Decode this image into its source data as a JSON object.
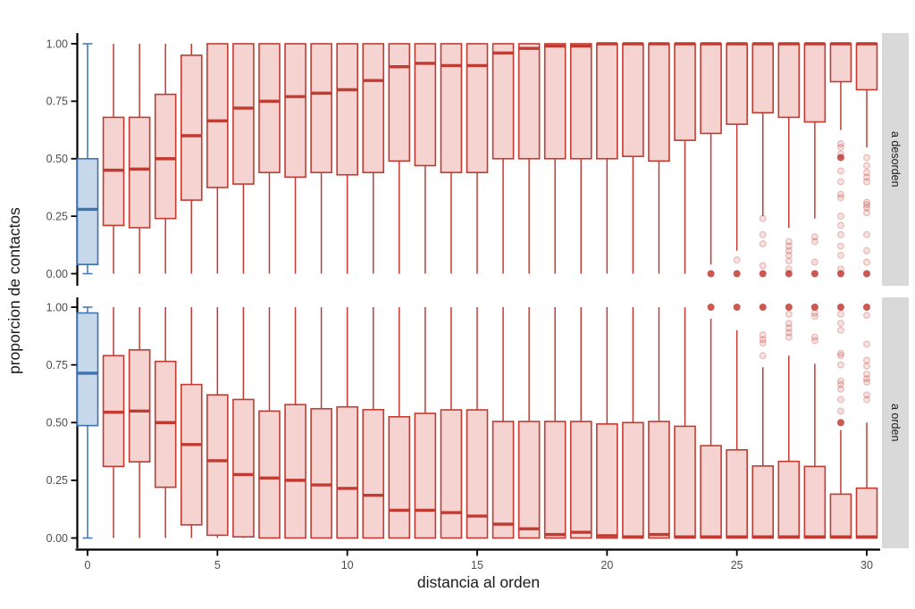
{
  "colors": {
    "red_stroke": "#C23B33",
    "red_fill": "#F4D3D0",
    "blue_stroke": "#3E73B2",
    "blue_fill": "#C6D8EA",
    "axis_line": "#000000",
    "tick_label": "#4D4D4D",
    "title_text": "#1A1A1A",
    "strip_bg": "#D9D9D9",
    "strip_text": "#1A1A1A"
  },
  "chart_data": {
    "type": "boxplot",
    "title": "",
    "xlabel": "distancia al orden",
    "ylabel": "proporcion de contactos",
    "x_ticks": [
      0,
      5,
      10,
      15,
      20,
      25,
      30
    ],
    "x_tick_labels": [
      "0",
      "5",
      "10",
      "15",
      "20",
      "25",
      "30"
    ],
    "y_ticks": [
      0,
      0.25,
      0.5,
      0.75,
      1
    ],
    "y_tick_labels": [
      "0.00",
      "0.25",
      "0.50",
      "0.75",
      "1.00"
    ],
    "xlim": [
      -1,
      31
    ],
    "ylim": [
      0,
      1
    ],
    "grid": false,
    "legend": "none",
    "facet_layout": "rows-right-strips",
    "facets": [
      {
        "label": "a desorden",
        "boxes": [
          {
            "x": 0,
            "group": "blue",
            "lo": 0,
            "q1": 0.04,
            "med": 0.28,
            "q3": 0.5,
            "hi": 1
          },
          {
            "x": 1,
            "group": "red",
            "lo": 0,
            "q1": 0.21,
            "med": 0.45,
            "q3": 0.68,
            "hi": 1
          },
          {
            "x": 2,
            "group": "red",
            "lo": 0,
            "q1": 0.2,
            "med": 0.455,
            "q3": 0.68,
            "hi": 1
          },
          {
            "x": 3,
            "group": "red",
            "lo": 0,
            "q1": 0.24,
            "med": 0.5,
            "q3": 0.78,
            "hi": 1
          },
          {
            "x": 4,
            "group": "red",
            "lo": 0,
            "q1": 0.32,
            "med": 0.6,
            "q3": 0.95,
            "hi": 1
          },
          {
            "x": 5,
            "group": "red",
            "lo": 0,
            "q1": 0.375,
            "med": 0.665,
            "q3": 1,
            "hi": 1
          },
          {
            "x": 6,
            "group": "red",
            "lo": 0,
            "q1": 0.39,
            "med": 0.72,
            "q3": 1,
            "hi": 1
          },
          {
            "x": 7,
            "group": "red",
            "lo": 0,
            "q1": 0.44,
            "med": 0.75,
            "q3": 1,
            "hi": 1
          },
          {
            "x": 8,
            "group": "red",
            "lo": 0,
            "q1": 0.42,
            "med": 0.77,
            "q3": 1,
            "hi": 1
          },
          {
            "x": 9,
            "group": "red",
            "lo": 0,
            "q1": 0.44,
            "med": 0.785,
            "q3": 1,
            "hi": 1
          },
          {
            "x": 10,
            "group": "red",
            "lo": 0,
            "q1": 0.43,
            "med": 0.8,
            "q3": 1,
            "hi": 1
          },
          {
            "x": 11,
            "group": "red",
            "lo": 0,
            "q1": 0.44,
            "med": 0.84,
            "q3": 1,
            "hi": 1
          },
          {
            "x": 12,
            "group": "red",
            "lo": 0,
            "q1": 0.49,
            "med": 0.9,
            "q3": 1,
            "hi": 1
          },
          {
            "x": 13,
            "group": "red",
            "lo": 0,
            "q1": 0.47,
            "med": 0.915,
            "q3": 1,
            "hi": 1
          },
          {
            "x": 14,
            "group": "red",
            "lo": 0,
            "q1": 0.44,
            "med": 0.905,
            "q3": 1,
            "hi": 1
          },
          {
            "x": 15,
            "group": "red",
            "lo": 0,
            "q1": 0.44,
            "med": 0.905,
            "q3": 1,
            "hi": 1
          },
          {
            "x": 16,
            "group": "red",
            "lo": 0,
            "q1": 0.5,
            "med": 0.96,
            "q3": 1,
            "hi": 1
          },
          {
            "x": 17,
            "group": "red",
            "lo": 0,
            "q1": 0.5,
            "med": 0.98,
            "q3": 1,
            "hi": 1
          },
          {
            "x": 18,
            "group": "red",
            "lo": 0,
            "q1": 0.5,
            "med": 0.99,
            "q3": 1,
            "hi": 1
          },
          {
            "x": 19,
            "group": "red",
            "lo": 0,
            "q1": 0.5,
            "med": 0.99,
            "q3": 1,
            "hi": 1
          },
          {
            "x": 20,
            "group": "red",
            "lo": 0,
            "q1": 0.5,
            "med": 1,
            "q3": 1,
            "hi": 1
          },
          {
            "x": 21,
            "group": "red",
            "lo": 0,
            "q1": 0.51,
            "med": 1,
            "q3": 1,
            "hi": 1
          },
          {
            "x": 22,
            "group": "red",
            "lo": 0,
            "q1": 0.49,
            "med": 1,
            "q3": 1,
            "hi": 1
          },
          {
            "x": 23,
            "group": "red",
            "lo": 0,
            "q1": 0.58,
            "med": 1,
            "q3": 1,
            "hi": 1
          },
          {
            "x": 24,
            "group": "red",
            "lo": 0.04,
            "q1": 0.61,
            "med": 1,
            "q3": 1,
            "hi": 1,
            "out_dark": [
              0
            ]
          },
          {
            "x": 25,
            "group": "red",
            "lo": 0.1,
            "q1": 0.65,
            "med": 1,
            "q3": 1,
            "hi": 1,
            "out": [
              0.06
            ],
            "out_dark": [
              0
            ]
          },
          {
            "x": 26,
            "group": "red",
            "lo": 0.25,
            "q1": 0.7,
            "med": 1,
            "q3": 1,
            "hi": 1,
            "out": [
              0.24,
              0.17,
              0.13,
              0.035
            ],
            "out_dark": [
              0
            ]
          },
          {
            "x": 27,
            "group": "red",
            "lo": 0.2,
            "q1": 0.68,
            "med": 1,
            "q3": 1,
            "hi": 1,
            "out": [
              0.14,
              0.12,
              0.1,
              0.08,
              0.055,
              0.02
            ],
            "out_dark": [
              0
            ]
          },
          {
            "x": 28,
            "group": "red",
            "lo": 0.24,
            "q1": 0.66,
            "med": 1,
            "q3": 1,
            "hi": 1,
            "out": [
              0.16,
              0.14,
              0.05
            ],
            "out_dark": [
              0
            ]
          },
          {
            "x": 29,
            "group": "red",
            "lo": 0.625,
            "q1": 0.835,
            "med": 1,
            "q3": 1,
            "hi": 1,
            "out": [
              0.565,
              0.55,
              0.52,
              0.447,
              0.4,
              0.345,
              0.33,
              0.25,
              0.21,
              0.17,
              0.12,
              0.08,
              0.02
            ],
            "out_dark": [
              0.505,
              0
            ]
          },
          {
            "x": 30,
            "group": "red",
            "lo": 0.55,
            "q1": 0.8,
            "med": 1,
            "q3": 1,
            "hi": 1,
            "out": [
              0.505,
              0.47,
              0.44,
              0.42,
              0.4,
              0.31,
              0.3,
              0.287,
              0.265,
              0.17,
              0.1,
              0.05
            ],
            "out_dark": [
              0
            ]
          }
        ]
      },
      {
        "label": "a orden",
        "boxes": [
          {
            "x": 0,
            "group": "blue",
            "lo": 0,
            "q1": 0.487,
            "med": 0.714,
            "q3": 0.975,
            "hi": 1
          },
          {
            "x": 1,
            "group": "red",
            "lo": 0,
            "q1": 0.31,
            "med": 0.545,
            "q3": 0.79,
            "hi": 1
          },
          {
            "x": 2,
            "group": "red",
            "lo": 0,
            "q1": 0.33,
            "med": 0.55,
            "q3": 0.815,
            "hi": 1
          },
          {
            "x": 3,
            "group": "red",
            "lo": 0,
            "q1": 0.22,
            "med": 0.5,
            "q3": 0.765,
            "hi": 1
          },
          {
            "x": 4,
            "group": "red",
            "lo": 0,
            "q1": 0.057,
            "med": 0.405,
            "q3": 0.665,
            "hi": 1
          },
          {
            "x": 5,
            "group": "red",
            "lo": 0,
            "q1": 0.012,
            "med": 0.335,
            "q3": 0.62,
            "hi": 1
          },
          {
            "x": 6,
            "group": "red",
            "lo": 0,
            "q1": 0.005,
            "med": 0.275,
            "q3": 0.6,
            "hi": 1
          },
          {
            "x": 7,
            "group": "red",
            "lo": 0,
            "q1": 0,
            "med": 0.26,
            "q3": 0.55,
            "hi": 1
          },
          {
            "x": 8,
            "group": "red",
            "lo": 0,
            "q1": 0,
            "med": 0.25,
            "q3": 0.578,
            "hi": 1
          },
          {
            "x": 9,
            "group": "red",
            "lo": 0,
            "q1": 0,
            "med": 0.23,
            "q3": 0.56,
            "hi": 1
          },
          {
            "x": 10,
            "group": "red",
            "lo": 0,
            "q1": 0,
            "med": 0.215,
            "q3": 0.568,
            "hi": 1
          },
          {
            "x": 11,
            "group": "red",
            "lo": 0,
            "q1": 0,
            "med": 0.185,
            "q3": 0.556,
            "hi": 1
          },
          {
            "x": 12,
            "group": "red",
            "lo": 0,
            "q1": 0,
            "med": 0.12,
            "q3": 0.525,
            "hi": 1
          },
          {
            "x": 13,
            "group": "red",
            "lo": 0,
            "q1": 0,
            "med": 0.12,
            "q3": 0.54,
            "hi": 1
          },
          {
            "x": 14,
            "group": "red",
            "lo": 0,
            "q1": 0,
            "med": 0.11,
            "q3": 0.555,
            "hi": 1
          },
          {
            "x": 15,
            "group": "red",
            "lo": 0,
            "q1": 0,
            "med": 0.095,
            "q3": 0.555,
            "hi": 1
          },
          {
            "x": 16,
            "group": "red",
            "lo": 0,
            "q1": 0,
            "med": 0.06,
            "q3": 0.505,
            "hi": 1
          },
          {
            "x": 17,
            "group": "red",
            "lo": 0,
            "q1": 0,
            "med": 0.04,
            "q3": 0.505,
            "hi": 1
          },
          {
            "x": 18,
            "group": "red",
            "lo": 0,
            "q1": 0,
            "med": 0.015,
            "q3": 0.505,
            "hi": 1
          },
          {
            "x": 19,
            "group": "red",
            "lo": 0,
            "q1": 0,
            "med": 0.025,
            "q3": 0.505,
            "hi": 1
          },
          {
            "x": 20,
            "group": "red",
            "lo": 0,
            "q1": 0,
            "med": 0.01,
            "q3": 0.494,
            "hi": 1
          },
          {
            "x": 21,
            "group": "red",
            "lo": 0,
            "q1": 0,
            "med": 0.005,
            "q3": 0.5,
            "hi": 1
          },
          {
            "x": 22,
            "group": "red",
            "lo": 0,
            "q1": 0,
            "med": 0.015,
            "q3": 0.505,
            "hi": 1
          },
          {
            "x": 23,
            "group": "red",
            "lo": 0,
            "q1": 0,
            "med": 0.005,
            "q3": 0.484,
            "hi": 1
          },
          {
            "x": 24,
            "group": "red",
            "lo": 0,
            "q1": 0,
            "med": 0.005,
            "q3": 0.4,
            "hi": 0.95,
            "out_dark": [
              1
            ]
          },
          {
            "x": 25,
            "group": "red",
            "lo": 0,
            "q1": 0,
            "med": 0.005,
            "q3": 0.382,
            "hi": 0.9,
            "out_dark": [
              1
            ]
          },
          {
            "x": 26,
            "group": "red",
            "lo": 0,
            "q1": 0,
            "med": 0.005,
            "q3": 0.312,
            "hi": 0.74,
            "out": [
              0.88,
              0.86,
              0.845,
              0.79
            ],
            "out_dark": [
              1
            ]
          },
          {
            "x": 27,
            "group": "red",
            "lo": 0,
            "q1": 0,
            "med": 0.005,
            "q3": 0.332,
            "hi": 0.79,
            "out": [
              0.97,
              0.93,
              0.91,
              0.89,
              0.87
            ],
            "out_dark": [
              1
            ]
          },
          {
            "x": 28,
            "group": "red",
            "lo": 0,
            "q1": 0,
            "med": 0.005,
            "q3": 0.31,
            "hi": 0.755,
            "out": [
              0.975,
              0.96,
              0.87,
              0.855
            ],
            "out_dark": [
              1
            ]
          },
          {
            "x": 29,
            "group": "red",
            "lo": 0,
            "q1": 0,
            "med": 0.005,
            "q3": 0.19,
            "hi": 0.468,
            "out": [
              0.97,
              0.93,
              0.9,
              0.8,
              0.79,
              0.75,
              0.68,
              0.665,
              0.645,
              0.6,
              0.55
            ],
            "out_dark": [
              1,
              0.5
            ]
          },
          {
            "x": 30,
            "group": "red",
            "lo": 0,
            "q1": 0,
            "med": 0.005,
            "q3": 0.216,
            "hi": 0.5,
            "out": [
              0.965,
              0.84,
              0.77,
              0.745,
              0.71,
              0.69,
              0.675,
              0.62,
              0.6
            ],
            "out_dark": [
              1
            ]
          }
        ]
      }
    ]
  }
}
